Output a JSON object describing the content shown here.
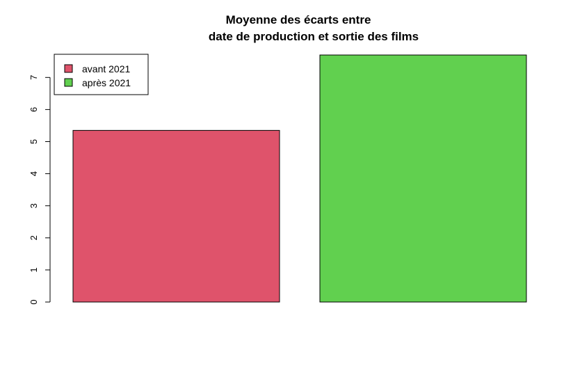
{
  "chart_data": {
    "type": "bar",
    "title_line1": "Moyenne des écarts entre",
    "title_line2": "date de production et sortie des films",
    "xlabel": "",
    "ylabel": "",
    "ylim": [
      0,
      7.7
    ],
    "yticks": [
      "0",
      "1",
      "2",
      "3",
      "4",
      "5",
      "6",
      "7"
    ],
    "categories": [
      "avant 2021",
      "après 2021"
    ],
    "values": [
      5.35,
      7.7
    ],
    "colors": [
      "#DF536B",
      "#61D04F"
    ],
    "legend": {
      "position": "top-left",
      "entries": [
        "avant 2021",
        "après 2021"
      ]
    }
  }
}
